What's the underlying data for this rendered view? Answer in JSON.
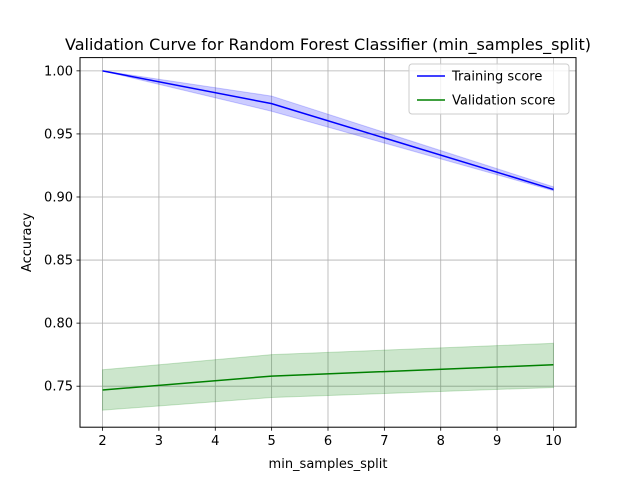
{
  "chart_data": {
    "type": "line",
    "title": "Validation Curve for Random Forest Classifier (min_samples_split)",
    "xlabel": "min_samples_split",
    "ylabel": "Accuracy",
    "xlim": [
      1.6,
      10.4
    ],
    "ylim": [
      0.7175,
      1.0105
    ],
    "x": [
      2,
      5,
      10
    ],
    "xticks": [
      2,
      3,
      4,
      5,
      6,
      7,
      8,
      9,
      10
    ],
    "yticks": [
      0.75,
      0.8,
      0.85,
      0.9,
      0.95,
      1.0
    ],
    "ytick_labels": [
      "0.75",
      "0.80",
      "0.85",
      "0.90",
      "0.95",
      "1.00"
    ],
    "grid": true,
    "legend_position": "top-right",
    "series": [
      {
        "name": "Training score",
        "color": "#0000ff",
        "band_color": "#0000ff",
        "values": [
          1.0,
          0.974,
          0.906
        ],
        "lower": [
          1.0,
          0.968,
          0.905
        ],
        "upper": [
          1.0,
          0.98,
          0.908
        ]
      },
      {
        "name": "Validation score",
        "color": "#008000",
        "band_color": "#008000",
        "values": [
          0.747,
          0.758,
          0.767
        ],
        "lower": [
          0.731,
          0.741,
          0.749
        ],
        "upper": [
          0.763,
          0.775,
          0.784
        ]
      }
    ]
  }
}
